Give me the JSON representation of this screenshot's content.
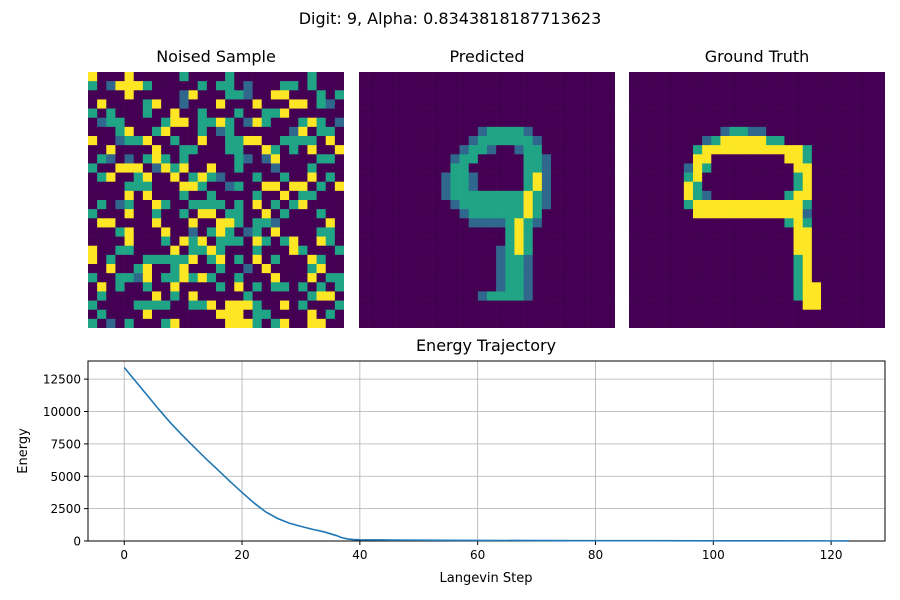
{
  "suptitle": "Digit: 9, Alpha: 0.8343818187713623",
  "colormap": [
    "#440154",
    "#30678d",
    "#20a486",
    "#fde725"
  ],
  "images": [
    {
      "title": "Noised Sample",
      "grid_size": 28,
      "rows": [
        "3000300000200002000000002000",
        "2013332000002022010002202000",
        "0000300000130002210033000202",
        "0300002300100030003000330210",
        "2020002003002000200223000000",
        "0122000023302232013200023201",
        "0002300230002012000000130220",
        "3001223002003002233002222030",
        "0030000300220002200320203003",
        "0210102320200000210130000220",
        "2003330132300300200010002000",
        "0230023003023210002002003020",
        "0000222000332001200330330203",
        "0000303000200200002003022000",
        "0201200320022220203020230000",
        "2000300200203302200302000200",
        "0330000300030033202210000030",
        "0002300030010232012030000220",
        "0000300020323022203202300320",
        "3002200003022320002000320002",
        "3020002222230230203020003200",
        "0030023002300020010300002300",
        "2002213022323200200030003022",
        "0302002003000020302022020202",
        "0200000302030000020000002330",
        "2000022220022303332003020002",
        "0200003000000033302200003020",
        "2010200023000003332023003300"
      ]
    },
    {
      "title": "Predicted",
      "grid_size": 28,
      "rows": [
        "0000000000000000000000000000",
        "0000000000000000000000000000",
        "0000000000000000000000000000",
        "0000000000000000000000000000",
        "0000000000000000000000000000",
        "0000000000000000000000000000",
        "0000000000000122221000000000",
        "0000000000001222222100000000",
        "0000000000012210012200000000",
        "0000000000122000002210000000",
        "0000000000220000002210000000",
        "0000000001221000002310000000",
        "0000000001221000002310000000",
        "0000000001222222223210000000",
        "0000000000122222223210000000",
        "0000000000012222223200000000",
        "0000000000001111232100000000",
        "0000000000000000232000000000",
        "0000000000000000232000000000",
        "0000000000000001232000000000",
        "0000000000000001221000000000",
        "0000000000000001221000000000",
        "0000000000000001221000000000",
        "0000000000000001221000000000",
        "0000000000000122221000000000",
        "0000000000000000000000000000",
        "0000000000000000000000000000",
        "0000000000000000000000000000"
      ]
    },
    {
      "title": "Ground Truth",
      "grid_size": 28,
      "rows": [
        "0000000000000000000000000000",
        "0000000000000000000000000000",
        "0000000000000000000000000000",
        "0000000000000000000000000000",
        "0000000000000000000000000000",
        "0000000000000000000000000000",
        "0000000000122110000000000000",
        "0000000012333332200000000000",
        "0000000233333333333200000000",
        "0000000330000000033200000000",
        "0000001320000000003300000000",
        "0000002300000000002300000000",
        "0000003200000000002300000000",
        "0000003210000000023300000000",
        "0000002333333333333200000000",
        "0000000333333333333100000000",
        "0000000000000000023200000000",
        "0000000000000000003300000000",
        "0000000000000000003300000000",
        "0000000000000000003300000000",
        "0000000000000000002300000000",
        "0000000000000000002300000000",
        "0000000000000000002300000000",
        "0000000000000000002330000000",
        "0000000000000000002330000000",
        "0000000000000000000330000000",
        "0000000000000000000000000000",
        "0000000000000000000000000000"
      ]
    }
  ],
  "chart_data": {
    "type": "line",
    "title": "Energy Trajectory",
    "xlabel": "Langevin Step",
    "ylabel": "Energy",
    "xlim": [
      -6.15,
      129.15
    ],
    "ylim": [
      0,
      13900
    ],
    "xticks": [
      0,
      20,
      40,
      60,
      80,
      100,
      120
    ],
    "yticks": [
      0,
      2500,
      5000,
      7500,
      10000,
      12500
    ],
    "grid": true,
    "series": [
      {
        "color": "#1f77b4",
        "x": [
          0,
          2,
          4,
          6,
          8,
          10,
          12,
          14,
          16,
          18,
          20,
          22,
          24,
          26,
          28,
          30,
          32,
          34,
          36,
          37,
          38,
          39,
          40,
          45,
          50,
          60,
          70,
          80,
          90,
          100,
          110,
          120,
          123
        ],
        "y": [
          13400,
          12300,
          11200,
          10100,
          9050,
          8100,
          7200,
          6300,
          5450,
          4580,
          3750,
          2950,
          2250,
          1750,
          1380,
          1130,
          900,
          700,
          420,
          250,
          150,
          110,
          95,
          75,
          60,
          45,
          35,
          28,
          22,
          18,
          14,
          10,
          8
        ]
      }
    ]
  }
}
